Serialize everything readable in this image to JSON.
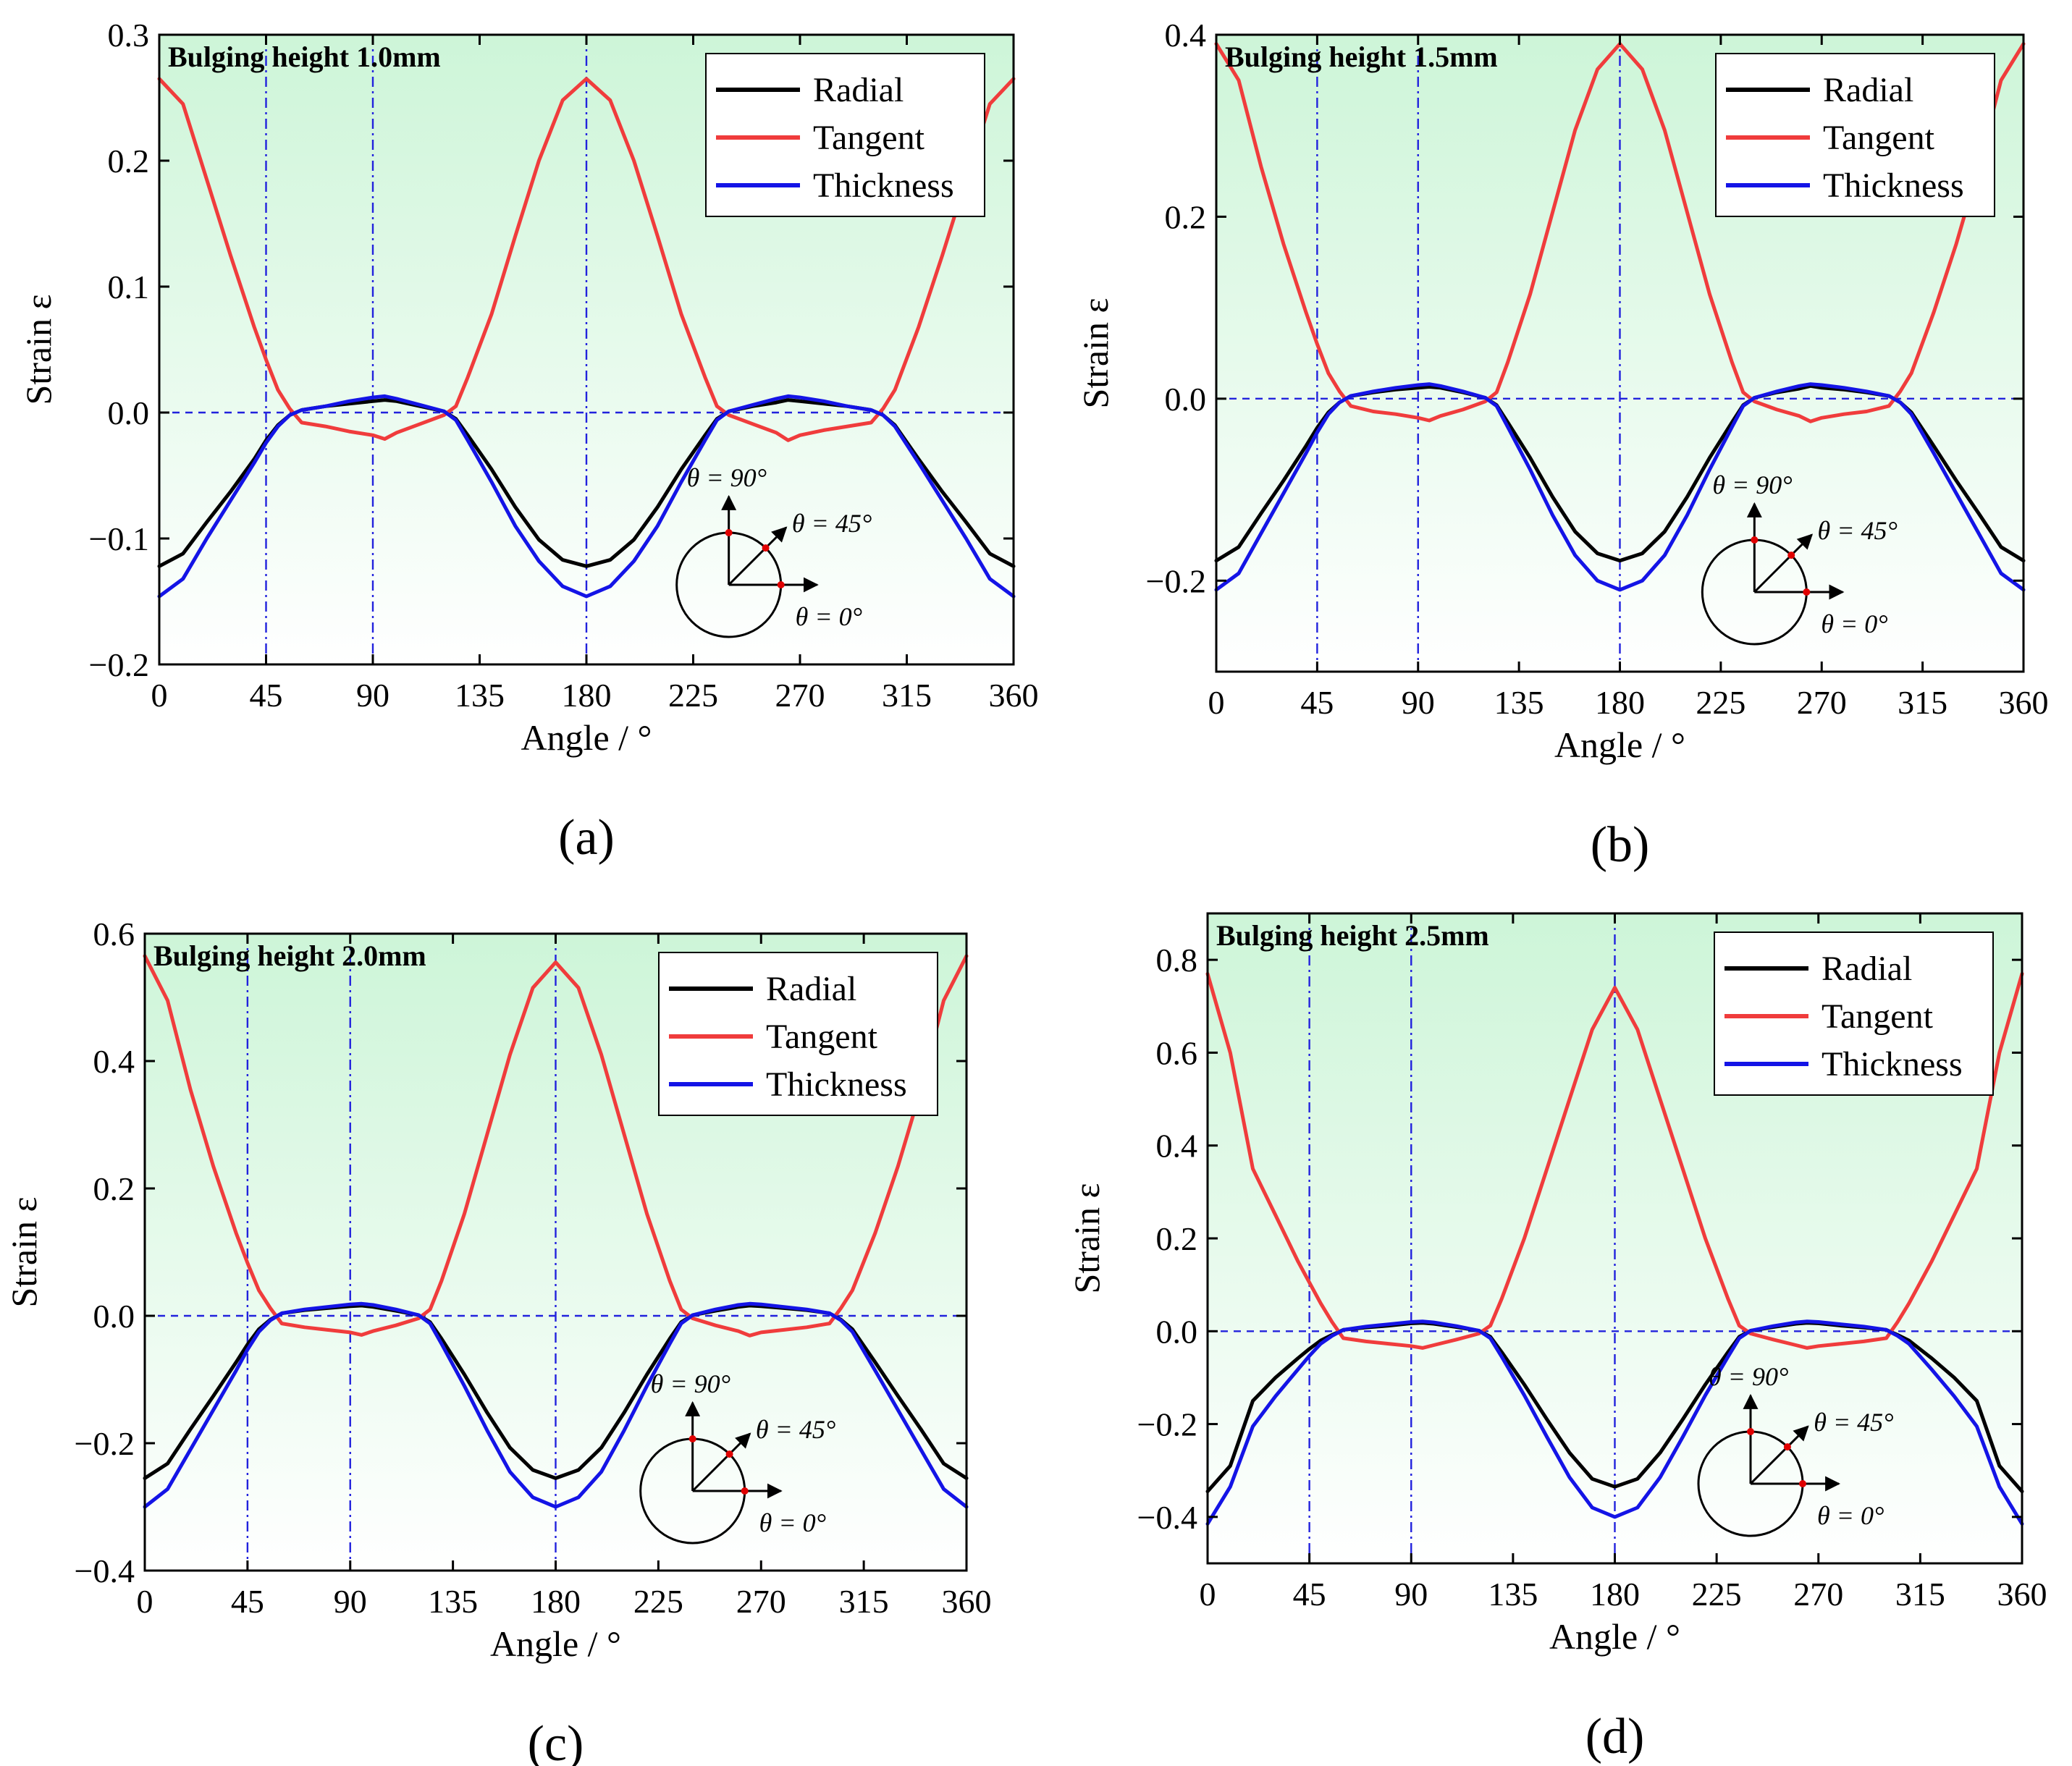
{
  "colors": {
    "radial": "#000000",
    "tangent": "#f03c3c",
    "thickness": "#1414e6",
    "guide": "#2222dd",
    "background_top": "#cdf5d8",
    "background_bottom": "#ffffff",
    "marker": "#e00000"
  },
  "inset": {
    "label_90": "θ = 90°",
    "label_45": "θ = 45°",
    "label_0": "θ = 0°"
  },
  "chart_data": [
    {
      "id": "a",
      "type": "line",
      "caption": "(a)",
      "title": "Bulging height 1.0mm",
      "xlabel": "Angle / °",
      "ylabel": "Strain ε",
      "xlim": [
        0,
        360
      ],
      "ylim": [
        -0.2,
        0.3
      ],
      "xticks": [
        0,
        45,
        90,
        135,
        180,
        225,
        270,
        315,
        360
      ],
      "yticks": [
        -0.2,
        -0.1,
        0.0,
        0.1,
        0.2,
        0.3
      ],
      "ytick_labels": [
        "−0.2",
        "−0.1",
        "0.0",
        "0.1",
        "0.2",
        "0.3"
      ],
      "vlines": [
        45,
        90,
        180
      ],
      "hline": 0,
      "legend": [
        "Radial",
        "Tangent",
        "Thickness"
      ],
      "x": [
        0,
        10,
        20,
        30,
        40,
        45,
        50,
        55,
        60,
        70,
        80,
        90,
        95,
        100,
        110,
        120,
        125,
        130,
        140,
        150,
        160,
        170,
        180,
        190,
        200,
        210,
        220,
        230,
        235,
        240,
        250,
        260,
        265,
        270,
        280,
        290,
        300,
        305,
        310,
        320,
        330,
        340,
        350,
        360
      ],
      "series": [
        {
          "name": "Radial",
          "values": [
            -0.122,
            -0.112,
            -0.087,
            -0.063,
            -0.037,
            -0.022,
            -0.01,
            -0.002,
            0.002,
            0.005,
            0.007,
            0.009,
            0.01,
            0.009,
            0.005,
            0.001,
            -0.005,
            -0.018,
            -0.045,
            -0.075,
            -0.101,
            -0.117,
            -0.122,
            -0.117,
            -0.101,
            -0.075,
            -0.045,
            -0.018,
            -0.005,
            0.001,
            0.005,
            0.008,
            0.01,
            0.009,
            0.007,
            0.005,
            0.002,
            -0.002,
            -0.01,
            -0.037,
            -0.063,
            -0.087,
            -0.112,
            -0.122
          ]
        },
        {
          "name": "Tangent",
          "values": [
            0.265,
            0.245,
            0.185,
            0.125,
            0.068,
            0.042,
            0.018,
            0.003,
            -0.008,
            -0.011,
            -0.015,
            -0.018,
            -0.021,
            -0.016,
            -0.009,
            -0.002,
            0.005,
            0.028,
            0.078,
            0.14,
            0.2,
            0.248,
            0.265,
            0.248,
            0.2,
            0.14,
            0.078,
            0.028,
            0.005,
            -0.002,
            -0.009,
            -0.016,
            -0.022,
            -0.018,
            -0.014,
            -0.011,
            -0.008,
            0.003,
            0.018,
            0.068,
            0.125,
            0.185,
            0.245,
            0.265
          ]
        },
        {
          "name": "Thickness",
          "values": [
            -0.146,
            -0.132,
            -0.1,
            -0.07,
            -0.04,
            -0.024,
            -0.011,
            -0.002,
            0.002,
            0.005,
            0.009,
            0.012,
            0.013,
            0.011,
            0.006,
            0.001,
            -0.006,
            -0.022,
            -0.055,
            -0.09,
            -0.118,
            -0.138,
            -0.146,
            -0.138,
            -0.118,
            -0.09,
            -0.055,
            -0.022,
            -0.006,
            0.001,
            0.006,
            0.011,
            0.013,
            0.012,
            0.009,
            0.005,
            0.002,
            -0.002,
            -0.011,
            -0.04,
            -0.07,
            -0.1,
            -0.132,
            -0.146
          ]
        }
      ]
    },
    {
      "id": "b",
      "type": "line",
      "caption": "(b)",
      "title": "Bulging height 1.5mm",
      "xlabel": "Angle / °",
      "ylabel": "Strain ε",
      "xlim": [
        0,
        360
      ],
      "ylim": [
        -0.3,
        0.4
      ],
      "xticks": [
        0,
        45,
        90,
        135,
        180,
        225,
        270,
        315,
        360
      ],
      "yticks": [
        -0.2,
        0.0,
        0.2,
        0.4
      ],
      "ytick_labels": [
        "−0.2",
        "0.0",
        "0.2",
        "0.4"
      ],
      "vlines": [
        45,
        90,
        180
      ],
      "hline": 0,
      "legend": [
        "Radial",
        "Tangent",
        "Thickness"
      ],
      "x": [
        0,
        10,
        20,
        30,
        40,
        45,
        50,
        55,
        60,
        70,
        80,
        90,
        95,
        100,
        110,
        120,
        125,
        130,
        140,
        150,
        160,
        170,
        180,
        190,
        200,
        210,
        220,
        230,
        235,
        240,
        250,
        260,
        265,
        270,
        280,
        290,
        300,
        305,
        310,
        320,
        330,
        340,
        350,
        360
      ],
      "series": [
        {
          "name": "Radial",
          "values": [
            -0.178,
            -0.163,
            -0.126,
            -0.09,
            -0.052,
            -0.032,
            -0.015,
            -0.004,
            0.003,
            0.007,
            0.01,
            0.012,
            0.013,
            0.012,
            0.007,
            0.001,
            -0.007,
            -0.026,
            -0.065,
            -0.108,
            -0.146,
            -0.17,
            -0.178,
            -0.17,
            -0.146,
            -0.108,
            -0.065,
            -0.026,
            -0.007,
            0.001,
            0.007,
            0.011,
            0.014,
            0.012,
            0.01,
            0.007,
            0.003,
            -0.004,
            -0.015,
            -0.052,
            -0.09,
            -0.126,
            -0.163,
            -0.178
          ]
        },
        {
          "name": "Tangent",
          "values": [
            0.39,
            0.35,
            0.255,
            0.17,
            0.095,
            0.06,
            0.028,
            0.008,
            -0.008,
            -0.014,
            -0.017,
            -0.021,
            -0.024,
            -0.019,
            -0.012,
            -0.003,
            0.007,
            0.04,
            0.115,
            0.205,
            0.295,
            0.362,
            0.39,
            0.362,
            0.295,
            0.205,
            0.115,
            0.04,
            0.007,
            -0.003,
            -0.012,
            -0.019,
            -0.025,
            -0.021,
            -0.017,
            -0.014,
            -0.008,
            0.008,
            0.028,
            0.095,
            0.17,
            0.255,
            0.35,
            0.39
          ]
        },
        {
          "name": "Thickness",
          "values": [
            -0.21,
            -0.192,
            -0.148,
            -0.104,
            -0.06,
            -0.037,
            -0.017,
            -0.004,
            0.003,
            0.008,
            0.012,
            0.015,
            0.016,
            0.014,
            0.008,
            0.001,
            -0.008,
            -0.031,
            -0.078,
            -0.128,
            -0.172,
            -0.2,
            -0.21,
            -0.2,
            -0.172,
            -0.128,
            -0.078,
            -0.031,
            -0.008,
            0.001,
            0.008,
            0.014,
            0.016,
            0.015,
            0.012,
            0.008,
            0.003,
            -0.004,
            -0.017,
            -0.06,
            -0.104,
            -0.148,
            -0.192,
            -0.21
          ]
        }
      ]
    },
    {
      "id": "c",
      "type": "line",
      "caption": "(c)",
      "title": "Bulging height 2.0mm",
      "xlabel": "Angle / °",
      "ylabel": "Strain ε",
      "xlim": [
        0,
        360
      ],
      "ylim": [
        -0.4,
        0.6
      ],
      "xticks": [
        0,
        45,
        90,
        135,
        180,
        225,
        270,
        315,
        360
      ],
      "yticks": [
        -0.4,
        -0.2,
        0.0,
        0.2,
        0.4,
        0.6
      ],
      "ytick_labels": [
        "−0.4",
        "−0.2",
        "0.0",
        "0.2",
        "0.4",
        "0.6"
      ],
      "vlines": [
        45,
        90,
        180
      ],
      "hline": 0,
      "legend": [
        "Radial",
        "Tangent",
        "Thickness"
      ],
      "x": [
        0,
        10,
        20,
        30,
        40,
        45,
        50,
        55,
        60,
        70,
        80,
        90,
        95,
        100,
        110,
        120,
        125,
        130,
        140,
        150,
        160,
        170,
        180,
        190,
        200,
        210,
        220,
        230,
        235,
        240,
        250,
        260,
        265,
        270,
        280,
        290,
        300,
        305,
        310,
        320,
        330,
        340,
        350,
        360
      ],
      "series": [
        {
          "name": "Radial",
          "values": [
            -0.255,
            -0.232,
            -0.178,
            -0.126,
            -0.073,
            -0.045,
            -0.021,
            -0.006,
            0.004,
            0.009,
            0.012,
            0.015,
            0.016,
            0.014,
            0.008,
            0.001,
            -0.01,
            -0.036,
            -0.092,
            -0.152,
            -0.207,
            -0.242,
            -0.255,
            -0.242,
            -0.207,
            -0.152,
            -0.092,
            -0.036,
            -0.01,
            0.001,
            0.008,
            0.014,
            0.016,
            0.015,
            0.012,
            0.009,
            0.004,
            -0.006,
            -0.021,
            -0.073,
            -0.126,
            -0.178,
            -0.232,
            -0.255
          ]
        },
        {
          "name": "Tangent",
          "values": [
            0.565,
            0.495,
            0.355,
            0.235,
            0.13,
            0.083,
            0.04,
            0.012,
            -0.012,
            -0.018,
            -0.022,
            -0.026,
            -0.03,
            -0.024,
            -0.015,
            -0.004,
            0.01,
            0.055,
            0.16,
            0.285,
            0.41,
            0.515,
            0.555,
            0.515,
            0.41,
            0.285,
            0.16,
            0.055,
            0.01,
            -0.004,
            -0.015,
            -0.024,
            -0.031,
            -0.026,
            -0.022,
            -0.018,
            -0.012,
            0.012,
            0.04,
            0.13,
            0.235,
            0.355,
            0.495,
            0.565
          ]
        },
        {
          "name": "Thickness",
          "values": [
            -0.3,
            -0.272,
            -0.21,
            -0.148,
            -0.086,
            -0.053,
            -0.025,
            -0.007,
            0.004,
            0.01,
            0.014,
            0.018,
            0.019,
            0.017,
            0.01,
            0.001,
            -0.012,
            -0.044,
            -0.11,
            -0.18,
            -0.245,
            -0.285,
            -0.3,
            -0.285,
            -0.245,
            -0.18,
            -0.11,
            -0.044,
            -0.012,
            0.001,
            0.01,
            0.017,
            0.019,
            0.018,
            0.014,
            0.01,
            0.004,
            -0.007,
            -0.025,
            -0.086,
            -0.148,
            -0.21,
            -0.272,
            -0.3
          ]
        }
      ]
    },
    {
      "id": "d",
      "type": "line",
      "caption": "(d)",
      "title": "Bulging height 2.5mm",
      "xlabel": "Angle / °",
      "ylabel": "Strain ε",
      "xlim": [
        0,
        360
      ],
      "ylim": [
        -0.5,
        0.9
      ],
      "xticks": [
        0,
        45,
        90,
        135,
        180,
        225,
        270,
        315,
        360
      ],
      "yticks": [
        -0.4,
        -0.2,
        0.0,
        0.2,
        0.4,
        0.6,
        0.8
      ],
      "ytick_labels": [
        "−0.4",
        "−0.2",
        "0.0",
        "0.2",
        "0.4",
        "0.6",
        "0.8"
      ],
      "vlines": [
        45,
        90,
        180
      ],
      "hline": 0,
      "legend": [
        "Radial",
        "Tangent",
        "Thickness"
      ],
      "x": [
        0,
        10,
        20,
        30,
        40,
        45,
        50,
        55,
        60,
        70,
        80,
        90,
        95,
        100,
        110,
        120,
        125,
        130,
        140,
        150,
        160,
        170,
        180,
        190,
        200,
        210,
        220,
        230,
        235,
        240,
        250,
        260,
        265,
        270,
        280,
        290,
        300,
        305,
        310,
        320,
        330,
        340,
        350,
        360
      ],
      "series": [
        {
          "name": "Radial",
          "values": [
            -0.345,
            -0.29,
            -0.15,
            -0.1,
            -0.058,
            -0.038,
            -0.02,
            -0.008,
            0.003,
            0.008,
            0.012,
            0.017,
            0.018,
            0.016,
            0.009,
            0.001,
            -0.012,
            -0.045,
            -0.115,
            -0.19,
            -0.262,
            -0.318,
            -0.335,
            -0.318,
            -0.262,
            -0.19,
            -0.115,
            -0.045,
            -0.012,
            0.001,
            0.009,
            0.016,
            0.018,
            0.017,
            0.012,
            0.008,
            0.003,
            -0.008,
            -0.02,
            -0.058,
            -0.1,
            -0.15,
            -0.29,
            -0.345
          ]
        },
        {
          "name": "Tangent",
          "values": [
            0.77,
            0.6,
            0.35,
            0.25,
            0.15,
            0.105,
            0.06,
            0.02,
            -0.015,
            -0.022,
            -0.027,
            -0.032,
            -0.036,
            -0.03,
            -0.018,
            -0.005,
            0.012,
            0.07,
            0.2,
            0.35,
            0.5,
            0.65,
            0.74,
            0.65,
            0.5,
            0.35,
            0.2,
            0.07,
            0.012,
            -0.005,
            -0.018,
            -0.03,
            -0.036,
            -0.032,
            -0.027,
            -0.022,
            -0.015,
            0.02,
            0.06,
            0.15,
            0.25,
            0.35,
            0.6,
            0.77
          ]
        },
        {
          "name": "Thickness",
          "values": [
            -0.415,
            -0.335,
            -0.205,
            -0.14,
            -0.082,
            -0.053,
            -0.027,
            -0.01,
            0.003,
            0.01,
            0.015,
            0.02,
            0.021,
            0.019,
            0.011,
            0.001,
            -0.015,
            -0.055,
            -0.138,
            -0.228,
            -0.315,
            -0.38,
            -0.4,
            -0.38,
            -0.315,
            -0.228,
            -0.138,
            -0.055,
            -0.015,
            0.001,
            0.011,
            0.019,
            0.021,
            0.02,
            0.015,
            0.01,
            0.003,
            -0.01,
            -0.027,
            -0.082,
            -0.14,
            -0.205,
            -0.335,
            -0.415
          ]
        }
      ]
    }
  ]
}
